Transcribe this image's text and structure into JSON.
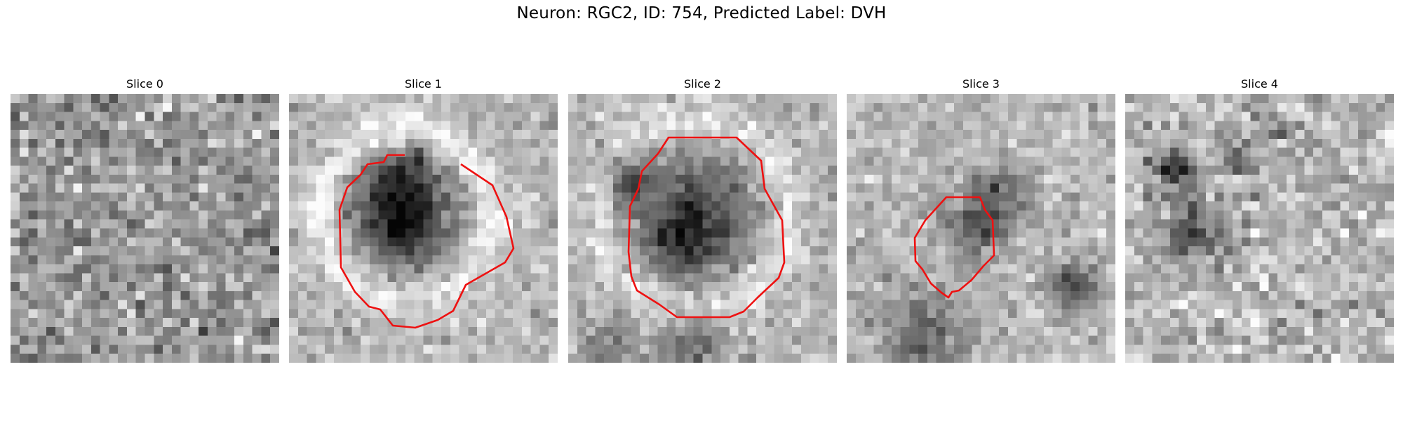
{
  "figure": {
    "title": "Neuron: RGC2, ID: 754, Predicted Label: DVH",
    "contour_color": "#ee1111",
    "panels": [
      {
        "title": "Slice 0",
        "has_contour": false
      },
      {
        "title": "Slice 1",
        "has_contour": true
      },
      {
        "title": "Slice 2",
        "has_contour": true
      },
      {
        "title": "Slice 3",
        "has_contour": true
      },
      {
        "title": "Slice 4",
        "has_contour": false
      }
    ]
  }
}
